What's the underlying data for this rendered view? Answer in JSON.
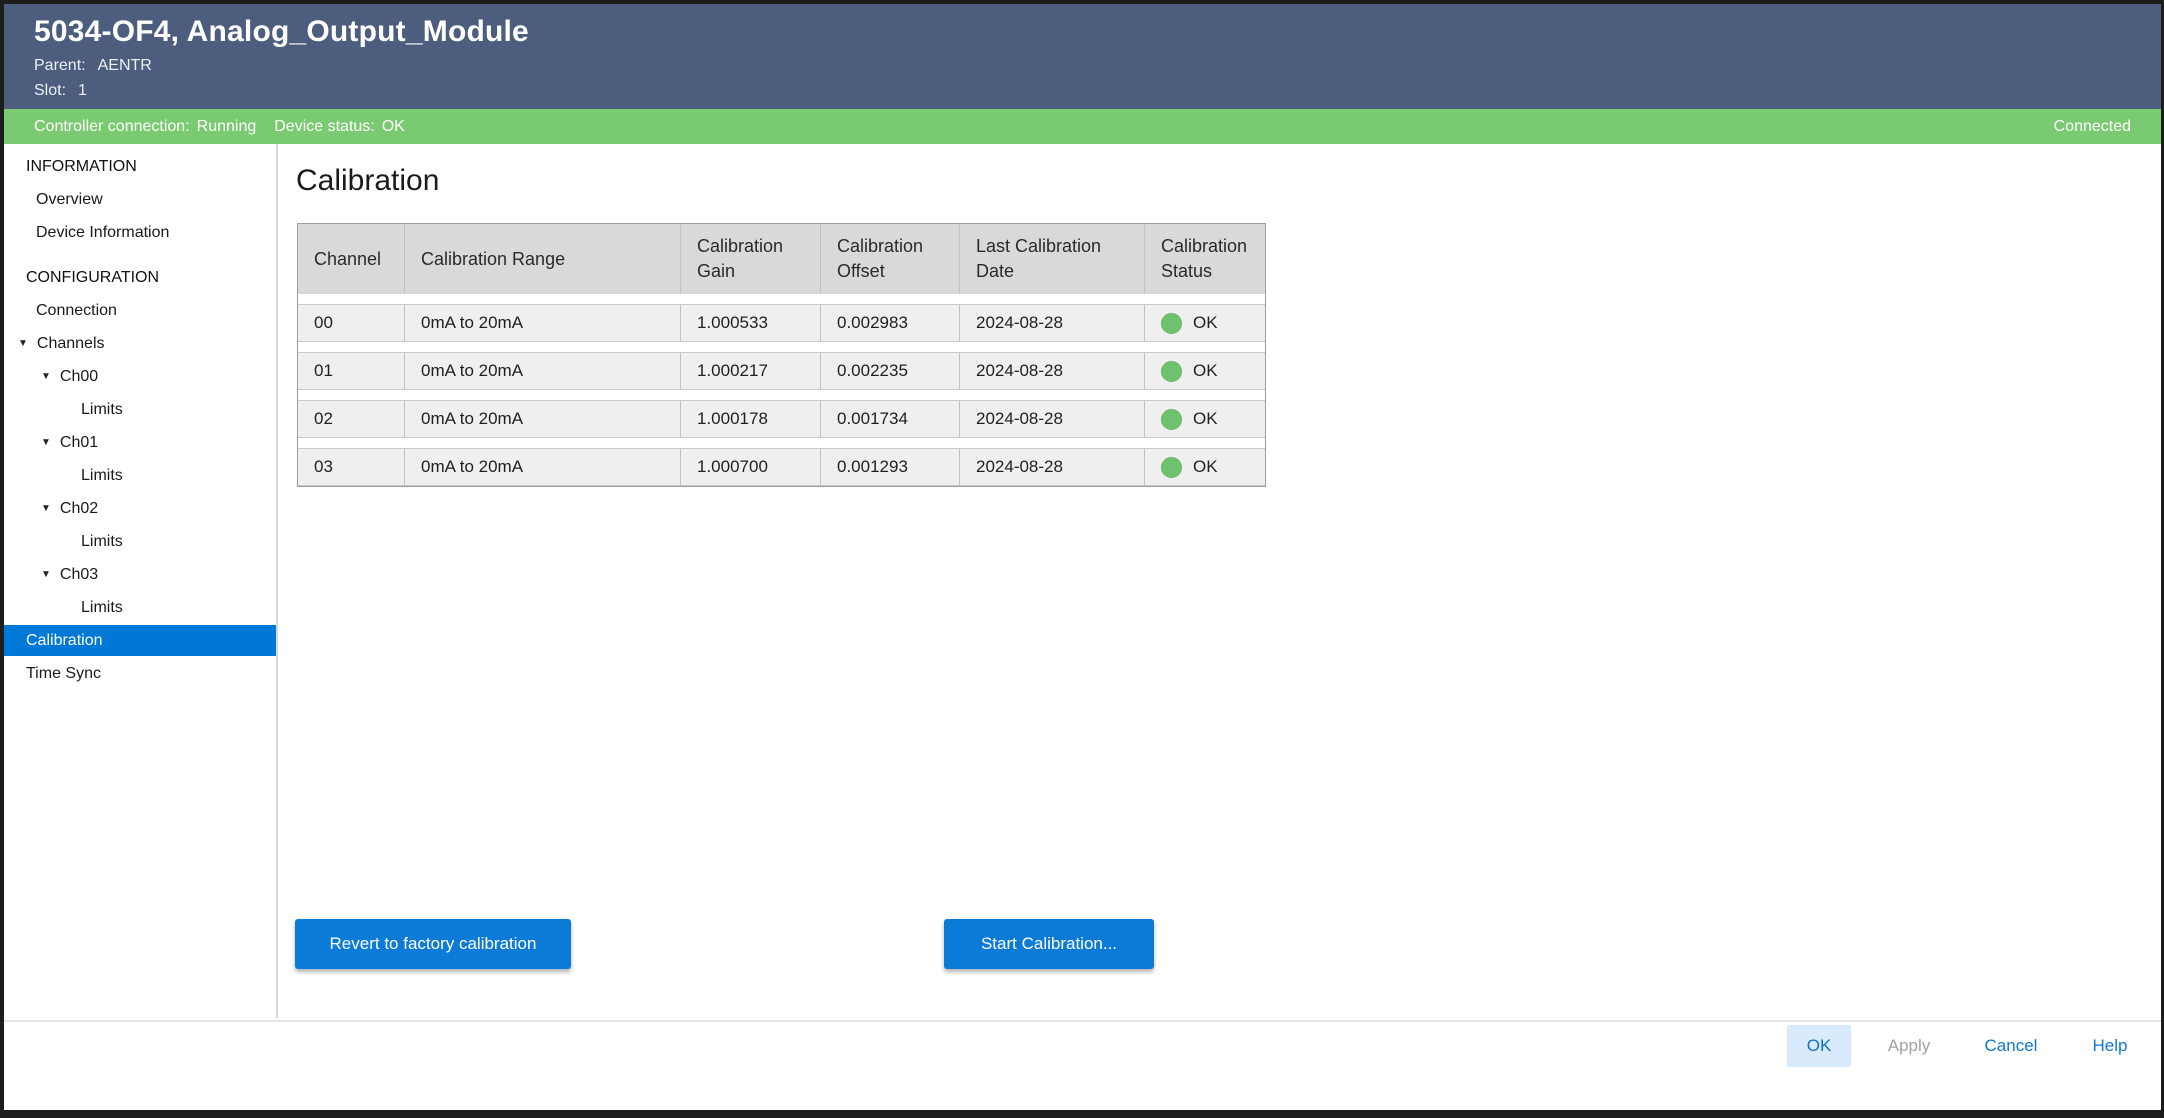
{
  "window": {
    "title": "5034-OF4, Analog_Output_Module",
    "parent_label": "Parent:",
    "parent_value": "AENTR",
    "slot_label": "Slot:",
    "slot_value": "1"
  },
  "statusbar": {
    "controller_label": "Controller connection:",
    "controller_value": "Running",
    "device_label": "Device status:",
    "device_value": "OK",
    "connection_state": "Connected"
  },
  "icons": {
    "caret_down": "▼"
  },
  "sidebar": {
    "items": [
      {
        "label": "INFORMATION",
        "type": "section"
      },
      {
        "label": "Overview",
        "type": "item"
      },
      {
        "label": "Device Information",
        "type": "item"
      },
      {
        "label": "CONFIGURATION",
        "type": "section"
      },
      {
        "label": "Connection",
        "type": "item"
      },
      {
        "label": "Channels",
        "type": "expandable"
      },
      {
        "label": "Ch00",
        "type": "expandable"
      },
      {
        "label": "Limits",
        "type": "child"
      },
      {
        "label": "Ch01",
        "type": "expandable"
      },
      {
        "label": "Limits",
        "type": "child"
      },
      {
        "label": "Ch02",
        "type": "expandable"
      },
      {
        "label": "Limits",
        "type": "child"
      },
      {
        "label": "Ch03",
        "type": "expandable"
      },
      {
        "label": "Limits",
        "type": "child"
      },
      {
        "label": "Calibration",
        "type": "item",
        "selected": true
      },
      {
        "label": "Time Sync",
        "type": "item"
      }
    ]
  },
  "calibration": {
    "heading": "Calibration",
    "table": {
      "headers": [
        "Channel",
        "Calibration Range",
        "Calibration Gain",
        "Calibration Offset",
        "Last Calibration Date",
        "Calibration Status"
      ],
      "rows": [
        {
          "channel": "00",
          "range": "0mA to 20mA",
          "gain": "1.000533",
          "offset": "0.002983",
          "date": "2024-08-28",
          "status": "OK"
        },
        {
          "channel": "01",
          "range": "0mA to 20mA",
          "gain": "1.000217",
          "offset": "0.002235",
          "date": "2024-08-28",
          "status": "OK"
        },
        {
          "channel": "02",
          "range": "0mA to 20mA",
          "gain": "1.000178",
          "offset": "0.001734",
          "date": "2024-08-28",
          "status": "OK"
        },
        {
          "channel": "03",
          "range": "0mA to 20mA",
          "gain": "1.000700",
          "offset": "0.001293",
          "date": "2024-08-28",
          "status": "OK"
        }
      ]
    },
    "revert_button": "Revert to factory calibration",
    "start_button": "Start Calibration..."
  },
  "footer": {
    "ok": "OK",
    "apply": "Apply",
    "cancel": "Cancel",
    "help": "Help"
  },
  "colors": {
    "titlebar_slate": "#4c5d7e",
    "status_bar_green": "#7aca72",
    "selection_blue": "#0078d7",
    "action_button_blue": "#0c7bd8",
    "status_ok_green": "#6fc26f",
    "ok_button_bg": "#d9eafc",
    "ok_button_text": "#1172c6",
    "link_blue": "#0e77d1",
    "disabled_text": "#a2a2a2",
    "table_header_bg": "#d9d9d9",
    "table_row_bg": "#efefef"
  }
}
